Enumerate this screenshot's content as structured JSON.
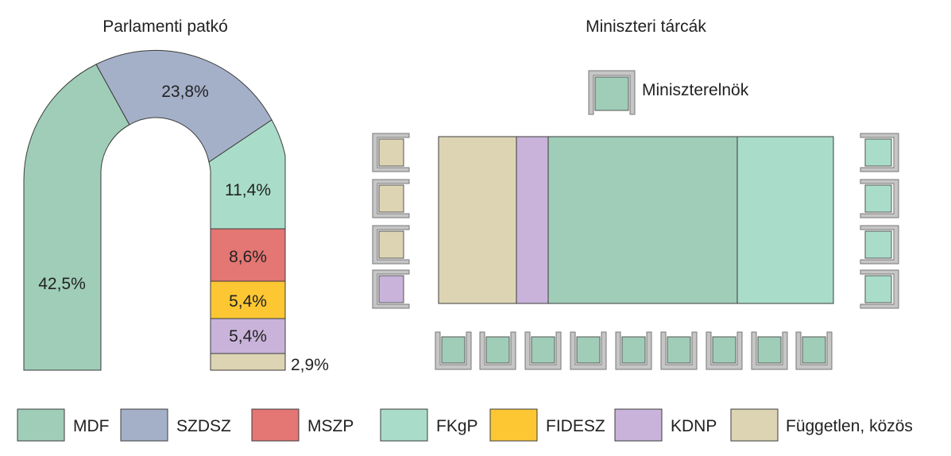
{
  "left_panel": {
    "title": "Parlamenti patkó",
    "labels": {
      "mdf": "42,5%",
      "szdsz": "23,8%",
      "fkgp": "11,4%",
      "mszp": "8,6%",
      "fidesz": "5,4%",
      "kdnp": "5,4%",
      "fuggetlen": "2,9%"
    }
  },
  "right_panel": {
    "title": "Miniszteri tárcák",
    "pm_label": "Miniszterelnök"
  },
  "legend": [
    {
      "label": "MDF",
      "color": "#9fcdb8"
    },
    {
      "label": "SZDSZ",
      "color": "#a4b0c8"
    },
    {
      "label": "MSZP",
      "color": "#e47673"
    },
    {
      "label": "FKgP",
      "color": "#a9ddc9"
    },
    {
      "label": "FIDESZ",
      "color": "#fcc733"
    },
    {
      "label": "KDNP",
      "color": "#c9b3da"
    },
    {
      "label": "Független, közös",
      "color": "#ddd4b3"
    }
  ],
  "colors": {
    "mdf": "#9fcdb8",
    "szdsz": "#a4b0c8",
    "mszp": "#e47673",
    "fkgp": "#a9ddc9",
    "fidesz": "#fcc733",
    "kdnp": "#c9b3da",
    "fuggetlen": "#ddd4b3",
    "chair_frame": "#9a9a9a"
  }
}
